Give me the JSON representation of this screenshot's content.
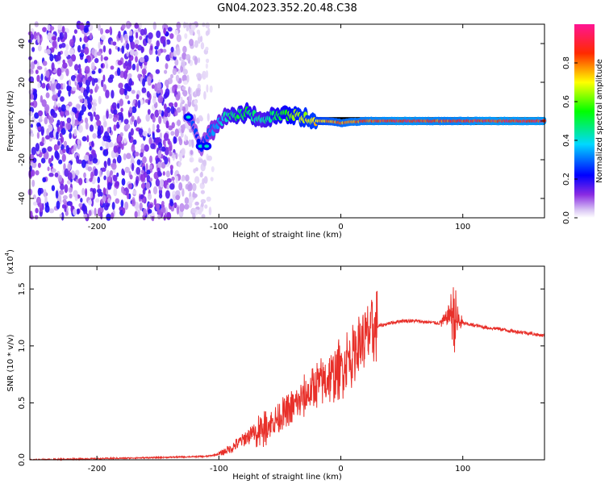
{
  "title": "GN04.2023.352.20.48.C38",
  "chart_data": [
    {
      "type": "heatmap",
      "xlabel": "Height of straight line (km)",
      "ylabel": "Frequency (Hz)",
      "xlim": [
        -255,
        167
      ],
      "ylim": [
        -50,
        50
      ],
      "xticks": [
        -200,
        -100,
        0,
        100
      ],
      "yticks": [
        -40,
        -20,
        0,
        20,
        40
      ],
      "colorbar": {
        "label": "Normalized spectral amplitude",
        "range": [
          0,
          1
        ],
        "ticks": [
          0.0,
          0.2,
          0.4,
          0.6,
          0.8
        ],
        "tick_labels": [
          "0.0",
          "0.2",
          "0.4",
          "0.6",
          "0.8"
        ],
        "colormap": "hsv-reversed (white, purple, blue, cyan, green, yellow, red, pink)"
      },
      "noise_region_x": [
        -255,
        -95
      ],
      "ridge": [
        {
          "x": -125,
          "f": 2,
          "amp": 0.3
        },
        {
          "x": -115,
          "f": -13,
          "amp": 0.25
        },
        {
          "x": -100,
          "f": 0,
          "amp": 0.4
        },
        {
          "x": -90,
          "f": 3,
          "amp": 0.5
        },
        {
          "x": -75,
          "f": 4,
          "amp": 0.55
        },
        {
          "x": -65,
          "f": 0,
          "amp": 0.45
        },
        {
          "x": -55,
          "f": 3,
          "amp": 0.55
        },
        {
          "x": -45,
          "f": 3,
          "amp": 0.6
        },
        {
          "x": -35,
          "f": 3,
          "amp": 0.7
        },
        {
          "x": -25,
          "f": 0,
          "amp": 0.75
        },
        {
          "x": -10,
          "f": 0,
          "amp": 0.8
        },
        {
          "x": 0,
          "f": -1,
          "amp": 0.85
        },
        {
          "x": 20,
          "f": 0,
          "amp": 0.9
        },
        {
          "x": 50,
          "f": 0,
          "amp": 0.95
        },
        {
          "x": 88,
          "f": 0,
          "amp": 0.9
        },
        {
          "x": 120,
          "f": 0,
          "amp": 0.95
        },
        {
          "x": 167,
          "f": 0,
          "amp": 0.95
        }
      ]
    },
    {
      "type": "line",
      "xlabel": "Height of straight line (km)",
      "ylabel": "SNR (10 * v/v)",
      "y_multiplier_label": "(x10",
      "y_multiplier_exp": "4",
      "y_multiplier_close": ")",
      "xlim": [
        -255,
        167
      ],
      "ylim": [
        0,
        1.7
      ],
      "xticks": [
        -200,
        -100,
        0,
        100
      ],
      "yticks": [
        0.0,
        0.5,
        1.0,
        1.5
      ],
      "color": "#e8302a",
      "series": [
        {
          "x": [
            -255,
            -200,
            -150,
            -110,
            -100,
            -90,
            -80,
            -70,
            -60,
            -50,
            -40,
            -30,
            -20,
            -10,
            0,
            10,
            20,
            30,
            40,
            50,
            60,
            70,
            80,
            85,
            90,
            95,
            100,
            110,
            120,
            130,
            140,
            150,
            160,
            167
          ],
          "y": [
            0.0,
            0.01,
            0.02,
            0.03,
            0.05,
            0.1,
            0.18,
            0.25,
            0.3,
            0.38,
            0.45,
            0.55,
            0.65,
            0.72,
            0.8,
            0.95,
            1.08,
            1.17,
            1.2,
            1.22,
            1.22,
            1.21,
            1.2,
            1.22,
            1.3,
            1.22,
            1.2,
            1.18,
            1.16,
            1.15,
            1.13,
            1.12,
            1.1,
            1.09
          ]
        }
      ]
    }
  ]
}
